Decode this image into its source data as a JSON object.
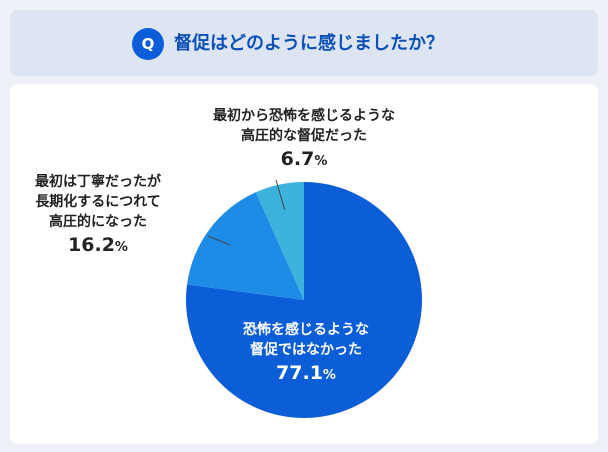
{
  "header": {
    "badge": "Q",
    "question": "督促はどのように感じましたか？"
  },
  "colors": {
    "header_bg": "#dde5f3",
    "accent": "#0b5ed7",
    "slice_1": "#0b5ed7",
    "slice_2": "#1e8be6",
    "slice_3": "#3cb2dc"
  },
  "chart_data": {
    "type": "pie",
    "title": "",
    "start_angle_deg": 0,
    "direction": "clockwise",
    "slices": [
      {
        "label_lines": [
          "恐怖を感じるような",
          "督促ではなかった"
        ],
        "value": 77.1,
        "value_text": "77.1",
        "unit": "%",
        "color": "#0b5ed7"
      },
      {
        "label_lines": [
          "最初は丁寧だったが",
          "長期化するにつれて",
          "高圧的になった"
        ],
        "value": 16.2,
        "value_text": "16.2",
        "unit": "%",
        "color": "#1e8be6"
      },
      {
        "label_lines": [
          "最初から恐怖を感じるような",
          "高圧的な督促だった"
        ],
        "value": 6.7,
        "value_text": "6.7",
        "unit": "%",
        "color": "#3cb2dc"
      }
    ]
  }
}
